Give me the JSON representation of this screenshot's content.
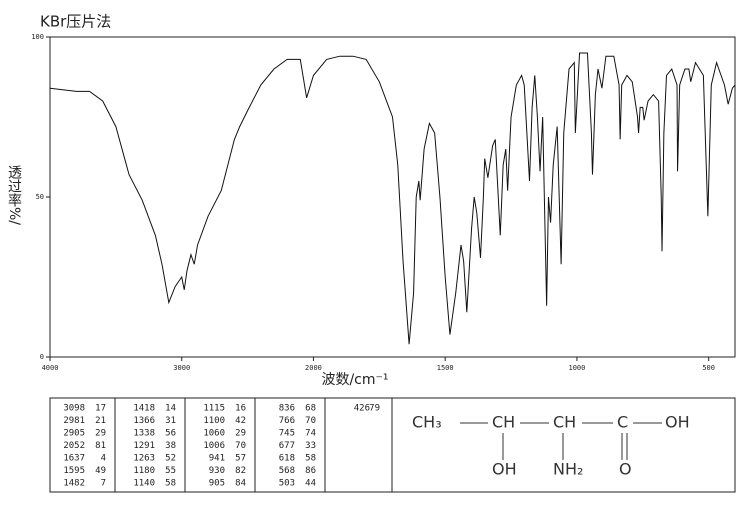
{
  "chart_data": {
    "type": "line",
    "title": "KBr压片法",
    "x_label": "波数/cm⁻¹",
    "y_label": "透过率%/",
    "xlim": [
      4000,
      400
    ],
    "x_break": 2000,
    "xticks": [
      4000,
      3000,
      2000,
      1500,
      1000,
      500
    ],
    "ylim": [
      0,
      100
    ],
    "yticks": [
      0,
      50,
      100
    ],
    "color": "#111111",
    "x": [
      4000,
      3800,
      3700,
      3600,
      3500,
      3400,
      3300,
      3200,
      3150,
      3098,
      3050,
      3000,
      2981,
      2960,
      2930,
      2905,
      2880,
      2800,
      2700,
      2600,
      2560,
      2500,
      2400,
      2300,
      2200,
      2100,
      2052,
      2000,
      1950,
      1900,
      1850,
      1800,
      1750,
      1700,
      1680,
      1660,
      1637,
      1620,
      1610,
      1600,
      1595,
      1580,
      1560,
      1540,
      1520,
      1500,
      1482,
      1460,
      1440,
      1430,
      1418,
      1400,
      1390,
      1380,
      1366,
      1355,
      1350,
      1338,
      1320,
      1310,
      1291,
      1280,
      1270,
      1263,
      1250,
      1230,
      1210,
      1200,
      1180,
      1170,
      1160,
      1150,
      1140,
      1130,
      1115,
      1108,
      1100,
      1090,
      1075,
      1060,
      1050,
      1030,
      1010,
      1006,
      990,
      960,
      945,
      941,
      936,
      930,
      920,
      905,
      890,
      860,
      840,
      836,
      830,
      810,
      790,
      770,
      766,
      760,
      750,
      745,
      730,
      710,
      690,
      680,
      677,
      670,
      660,
      640,
      620,
      618,
      610,
      590,
      575,
      568,
      550,
      520,
      503,
      490,
      470,
      440,
      426,
      410,
      400
    ],
    "values": [
      84,
      83,
      83,
      80,
      72,
      57,
      49,
      38,
      29,
      17,
      22,
      25,
      21,
      27,
      32,
      29,
      35,
      44,
      52,
      68,
      72,
      77,
      85,
      90,
      93,
      93,
      81,
      88,
      93,
      94,
      94,
      93,
      86,
      75,
      60,
      30,
      4,
      20,
      50,
      55,
      49,
      65,
      73,
      70,
      50,
      25,
      7,
      20,
      35,
      30,
      14,
      40,
      50,
      45,
      31,
      50,
      62,
      56,
      66,
      68,
      38,
      60,
      65,
      52,
      75,
      85,
      88,
      85,
      55,
      78,
      88,
      75,
      58,
      75,
      16,
      50,
      42,
      60,
      72,
      29,
      70,
      90,
      92,
      70,
      95,
      95,
      70,
      57,
      68,
      82,
      90,
      84,
      94,
      94,
      85,
      68,
      85,
      88,
      86,
      75,
      70,
      78,
      78,
      74,
      80,
      82,
      80,
      50,
      33,
      70,
      88,
      90,
      85,
      58,
      85,
      90,
      90,
      86,
      92,
      88,
      44,
      85,
      92,
      85,
      79,
      84,
      85
    ],
    "peak_table": [
      [
        3098,
        17
      ],
      [
        2981,
        21
      ],
      [
        2905,
        29
      ],
      [
        2052,
        81
      ],
      [
        1637,
        4
      ],
      [
        1595,
        49
      ],
      [
        1482,
        7
      ],
      [
        1418,
        14
      ],
      [
        1366,
        31
      ],
      [
        1338,
        56
      ],
      [
        1291,
        38
      ],
      [
        1263,
        52
      ],
      [
        1180,
        55
      ],
      [
        1140,
        58
      ],
      [
        1115,
        16
      ],
      [
        1100,
        42
      ],
      [
        1060,
        29
      ],
      [
        1006,
        70
      ],
      [
        941,
        57
      ],
      [
        930,
        82
      ],
      [
        905,
        84
      ],
      [
        836,
        68
      ],
      [
        766,
        70
      ],
      [
        745,
        74
      ],
      [
        677,
        33
      ],
      [
        618,
        58
      ],
      [
        568,
        86
      ],
      [
        503,
        44
      ],
      [
        426,
        79
      ]
    ],
    "structure": {
      "main": [
        "CH₃",
        "CH",
        "CH",
        "C",
        "OH"
      ],
      "substituents": [
        "OH",
        "NH₂",
        "O"
      ]
    }
  }
}
